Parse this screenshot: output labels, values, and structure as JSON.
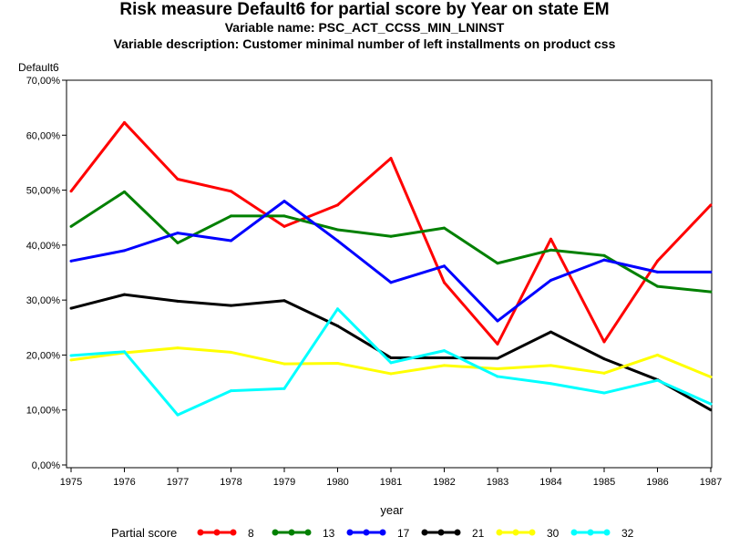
{
  "chart_data": {
    "type": "line",
    "title": "Risk measure Default6 for partial score by Year on state EM",
    "subtitle_lines": [
      "Variable name: PSC_ACT_CCSS_MIN_LNINST",
      "Variable description: Customer minimal number of left installments on product css"
    ],
    "ylabel": "Default6",
    "xlabel": "year",
    "x": [
      "1975",
      "1976",
      "1977",
      "1978",
      "1979",
      "1980",
      "1981",
      "1982",
      "1983",
      "1984",
      "1985",
      "1986",
      "1987"
    ],
    "ylim": [
      0,
      70
    ],
    "yticks": [
      "0,00%",
      "10,00%",
      "20,00%",
      "30,00%",
      "40,00%",
      "50,00%",
      "60,00%",
      "70,00%"
    ],
    "legend_title": "Partial score",
    "legend_position": "bottom",
    "grid": false,
    "series": [
      {
        "name": "8",
        "color": "#ff0000",
        "values": [
          49.8,
          62.3,
          52.0,
          49.8,
          43.4,
          47.3,
          55.8,
          33.2,
          22.0,
          41.1,
          22.4,
          37.1,
          47.3
        ]
      },
      {
        "name": "13",
        "color": "#008000",
        "values": [
          43.4,
          49.7,
          40.4,
          45.3,
          45.3,
          42.8,
          41.6,
          43.1,
          36.7,
          39.1,
          38.1,
          32.5,
          31.5
        ]
      },
      {
        "name": "17",
        "color": "#0000ff",
        "values": [
          37.1,
          39.0,
          42.2,
          40.8,
          48.0,
          40.8,
          33.2,
          36.2,
          26.2,
          33.6,
          37.3,
          35.1,
          35.1
        ]
      },
      {
        "name": "21",
        "color": "#000000",
        "values": [
          28.5,
          31.0,
          29.8,
          29.0,
          29.9,
          25.3,
          19.5,
          19.5,
          19.4,
          24.2,
          19.3,
          15.5,
          10.0
        ]
      },
      {
        "name": "30",
        "color": "#ffff00",
        "values": [
          19.1,
          20.4,
          21.3,
          20.5,
          18.4,
          18.5,
          16.6,
          18.1,
          17.5,
          18.1,
          16.7,
          20.0,
          16.0
        ]
      },
      {
        "name": "32",
        "color": "#00ffff",
        "values": [
          19.9,
          20.6,
          9.1,
          13.5,
          13.9,
          28.4,
          18.6,
          20.8,
          16.1,
          14.8,
          13.1,
          15.4,
          11.1
        ]
      }
    ]
  }
}
